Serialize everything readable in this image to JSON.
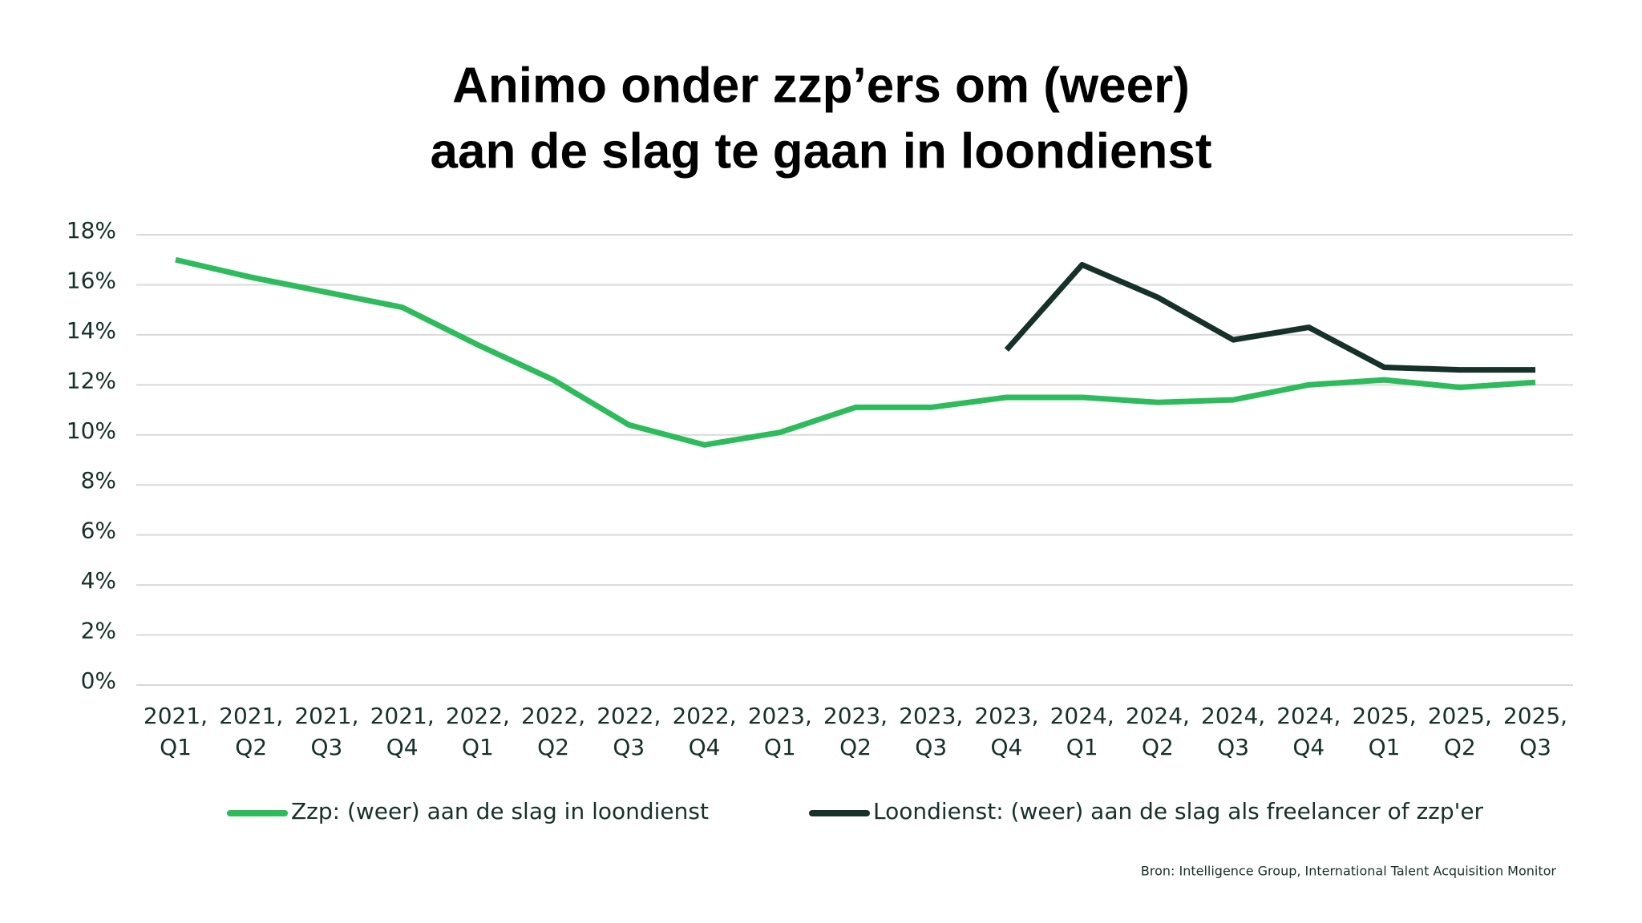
{
  "chart_data": {
    "type": "line",
    "title": [
      "Animo onder zzp’ers om (weer)",
      "aan de slag te gaan in loondienst"
    ],
    "categories": [
      [
        "2021,",
        "Q1"
      ],
      [
        "2021,",
        "Q2"
      ],
      [
        "2021,",
        "Q3"
      ],
      [
        "2021,",
        "Q4"
      ],
      [
        "2022,",
        "Q1"
      ],
      [
        "2022,",
        "Q2"
      ],
      [
        "2022,",
        "Q3"
      ],
      [
        "2022,",
        "Q4"
      ],
      [
        "2023,",
        "Q1"
      ],
      [
        "2023,",
        "Q2"
      ],
      [
        "2023,",
        "Q3"
      ],
      [
        "2023,",
        "Q4"
      ],
      [
        "2024,",
        "Q1"
      ],
      [
        "2024,",
        "Q2"
      ],
      [
        "2024,",
        "Q3"
      ],
      [
        "2024,",
        "Q4"
      ],
      [
        "2025,",
        "Q1"
      ],
      [
        "2025,",
        "Q2"
      ],
      [
        "2025,",
        "Q3"
      ]
    ],
    "series": [
      {
        "name": "Zzp: (weer) aan de slag in loondienst",
        "color": "#2dbb5c",
        "values": [
          17.0,
          16.3,
          15.7,
          15.1,
          13.6,
          12.2,
          10.4,
          9.6,
          10.1,
          11.1,
          11.1,
          11.5,
          11.5,
          11.3,
          11.4,
          12.0,
          12.2,
          11.9,
          12.1
        ]
      },
      {
        "name": "Loondienst: (weer) aan de slag als freelancer of zzp'er",
        "color": "#16302a",
        "values": [
          null,
          null,
          null,
          null,
          null,
          null,
          null,
          null,
          null,
          null,
          null,
          13.4,
          16.8,
          15.5,
          13.8,
          14.3,
          12.7,
          12.6,
          12.6
        ]
      }
    ],
    "ylim": [
      0,
      18
    ],
    "yticks": [
      {
        "value": 0,
        "label": "0%"
      },
      {
        "value": 2,
        "label": "2%"
      },
      {
        "value": 4,
        "label": "4%"
      },
      {
        "value": 6,
        "label": "6%"
      },
      {
        "value": 8,
        "label": "8%"
      },
      {
        "value": 10,
        "label": "10%"
      },
      {
        "value": 12,
        "label": "12%"
      },
      {
        "value": 14,
        "label": "14%"
      },
      {
        "value": 16,
        "label": "16%"
      },
      {
        "value": 18,
        "label": "18%"
      }
    ],
    "grid": true,
    "source": "Bron: Intelligence Group, International Talent Acquisition Monitor"
  }
}
